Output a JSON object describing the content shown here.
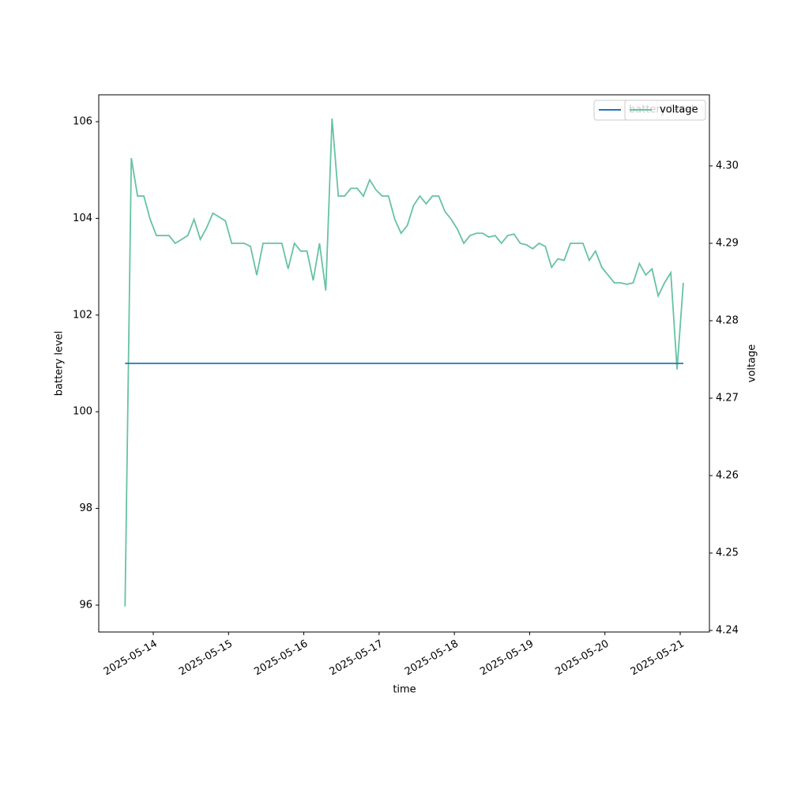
{
  "chart_data": {
    "type": "line",
    "xlabel": "time",
    "ylabel": "battery level",
    "y2label": "voltage",
    "x": [
      "2025-05-13T15:00",
      "2025-05-13T17:00",
      "2025-05-13T19:00",
      "2025-05-13T21:00",
      "2025-05-13T23:00",
      "2025-05-14T01:00",
      "2025-05-14T03:00",
      "2025-05-14T05:00",
      "2025-05-14T07:00",
      "2025-05-14T09:00",
      "2025-05-14T11:00",
      "2025-05-14T13:00",
      "2025-05-14T15:00",
      "2025-05-14T17:00",
      "2025-05-14T19:00",
      "2025-05-14T21:00",
      "2025-05-14T23:00",
      "2025-05-15T01:00",
      "2025-05-15T03:00",
      "2025-05-15T05:00",
      "2025-05-15T07:00",
      "2025-05-15T09:00",
      "2025-05-15T11:00",
      "2025-05-15T13:00",
      "2025-05-15T15:00",
      "2025-05-15T17:00",
      "2025-05-15T19:00",
      "2025-05-15T21:00",
      "2025-05-15T23:00",
      "2025-05-16T01:00",
      "2025-05-16T03:00",
      "2025-05-16T05:00",
      "2025-05-16T07:00",
      "2025-05-16T09:00",
      "2025-05-16T11:00",
      "2025-05-16T13:00",
      "2025-05-16T15:00",
      "2025-05-16T17:00",
      "2025-05-16T19:00",
      "2025-05-16T21:00",
      "2025-05-16T23:00",
      "2025-05-17T01:00",
      "2025-05-17T03:00",
      "2025-05-17T05:00",
      "2025-05-17T07:00",
      "2025-05-17T09:00",
      "2025-05-17T11:00",
      "2025-05-17T13:00",
      "2025-05-17T15:00",
      "2025-05-17T17:00",
      "2025-05-17T19:00",
      "2025-05-17T21:00",
      "2025-05-17T23:00",
      "2025-05-18T01:00",
      "2025-05-18T03:00",
      "2025-05-18T05:00",
      "2025-05-18T07:00",
      "2025-05-18T09:00",
      "2025-05-18T11:00",
      "2025-05-18T13:00",
      "2025-05-18T15:00",
      "2025-05-18T17:00",
      "2025-05-18T19:00",
      "2025-05-18T21:00",
      "2025-05-18T23:00",
      "2025-05-19T01:00",
      "2025-05-19T03:00",
      "2025-05-19T05:00",
      "2025-05-19T07:00",
      "2025-05-19T09:00",
      "2025-05-19T11:00",
      "2025-05-19T13:00",
      "2025-05-19T15:00",
      "2025-05-19T17:00",
      "2025-05-19T19:00",
      "2025-05-19T21:00",
      "2025-05-19T23:00",
      "2025-05-20T01:00",
      "2025-05-20T03:00",
      "2025-05-20T05:00",
      "2025-05-20T07:00",
      "2025-05-20T09:00",
      "2025-05-20T11:00",
      "2025-05-20T13:00",
      "2025-05-20T15:00",
      "2025-05-20T17:00",
      "2025-05-20T19:00",
      "2025-05-20T21:00",
      "2025-05-20T23:00",
      "2025-05-21T01:00"
    ],
    "series": [
      {
        "name": "battery level",
        "color": "#1f77b4",
        "values": [
          101,
          101,
          101,
          101,
          101,
          101,
          101,
          101,
          101,
          101,
          101,
          101,
          101,
          101,
          101,
          101,
          101,
          101,
          101,
          101,
          101,
          101,
          101,
          101,
          101,
          101,
          101,
          101,
          101,
          101,
          101,
          101,
          101,
          101,
          101,
          101,
          101,
          101,
          101,
          101,
          101,
          101,
          101,
          101,
          101,
          101,
          101,
          101,
          101,
          101,
          101,
          101,
          101,
          101,
          101,
          101,
          101,
          101,
          101,
          101,
          101,
          101,
          101,
          101,
          101,
          101,
          101,
          101,
          101,
          101,
          101,
          101,
          101,
          101,
          101,
          101,
          101,
          101,
          101,
          101,
          101,
          101,
          101,
          101,
          101,
          101,
          101,
          101,
          101,
          101
        ]
      },
      {
        "name": "voltage",
        "color": "#66c2a5",
        "axis": "y2",
        "values": [
          4.2431,
          4.301,
          4.2961,
          4.2961,
          4.2931,
          4.291,
          4.291,
          4.291,
          4.29,
          4.2905,
          4.291,
          4.2931,
          4.2905,
          4.292,
          4.2939,
          4.2934,
          4.2929,
          4.29,
          4.29,
          4.29,
          4.2896,
          4.2859,
          4.29,
          4.29,
          4.29,
          4.29,
          4.2867,
          4.29,
          4.289,
          4.289,
          4.2852,
          4.29,
          4.2839,
          4.3061,
          4.2961,
          4.2961,
          4.2971,
          4.2971,
          4.2961,
          4.2982,
          4.2969,
          4.2961,
          4.2961,
          4.2931,
          4.2913,
          4.2923,
          4.2949,
          4.2961,
          4.2951,
          4.2961,
          4.2961,
          4.2941,
          4.2931,
          4.2918,
          4.29,
          4.291,
          4.2913,
          4.2913,
          4.2908,
          4.291,
          4.29,
          4.291,
          4.2912,
          4.29,
          4.2898,
          4.2893,
          4.29,
          4.2896,
          4.2869,
          4.288,
          4.2878,
          4.29,
          4.29,
          4.29,
          4.2878,
          4.289,
          4.2869,
          4.2859,
          4.2849,
          4.2849,
          4.2847,
          4.2849,
          4.2874,
          4.2859,
          4.2867,
          4.2832,
          4.2849,
          4.2862,
          4.2737,
          4.2849
        ]
      }
    ],
    "xlim": [
      "2025-05-13T06:37",
      "2025-05-21T09:19"
    ],
    "xticks": [
      "2025-05-14",
      "2025-05-15",
      "2025-05-16",
      "2025-05-17",
      "2025-05-18",
      "2025-05-19",
      "2025-05-20",
      "2025-05-21"
    ],
    "ylim": [
      95.444,
      106.556
    ],
    "yticks": [
      96,
      98,
      100,
      102,
      104,
      106
    ],
    "y2lim": [
      4.2398,
      4.30918
    ],
    "y2ticks": [
      4.24,
      4.25,
      4.26,
      4.27,
      4.28,
      4.29,
      {
        "value": 4.3,
        "label": "4.30"
      }
    ],
    "legend": "upper right"
  }
}
